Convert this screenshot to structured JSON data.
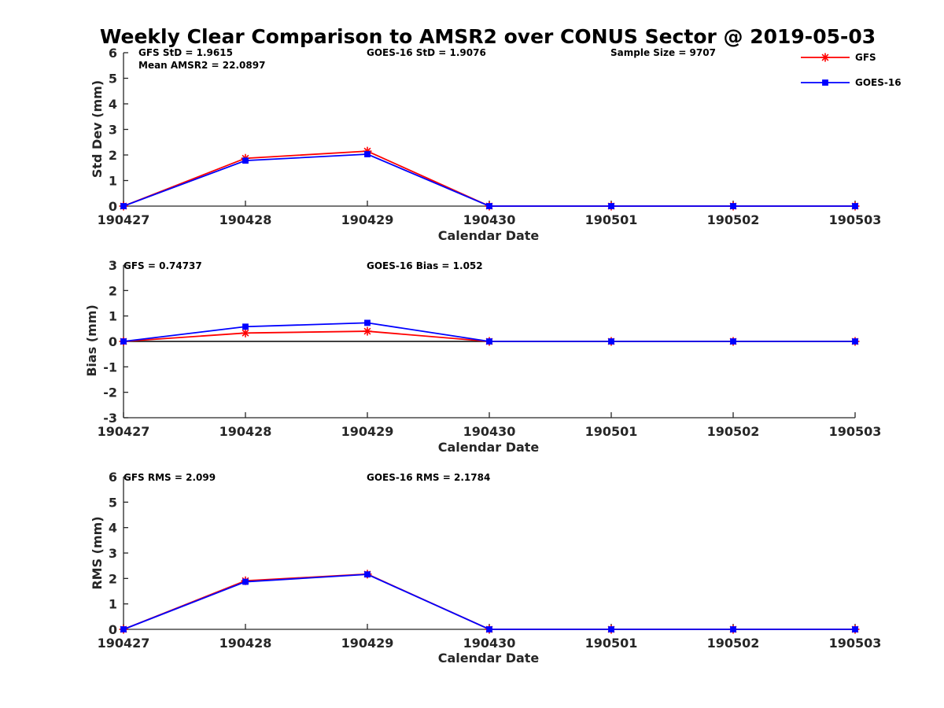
{
  "chart_data": {
    "title": "Weekly Clear Comparison to AMSR2 over CONUS Sector @ 2019-05-03",
    "categories": [
      "190427",
      "190428",
      "190429",
      "190430",
      "190501",
      "190502",
      "190503"
    ],
    "legend": {
      "placement": "top-right",
      "entries": [
        {
          "name": "GFS",
          "color": "#ff0000",
          "marker": "asterisk"
        },
        {
          "name": "GOES-16",
          "color": "#0000ff",
          "marker": "square"
        }
      ]
    },
    "panels": [
      {
        "type": "line",
        "xlabel": "Calendar Date",
        "ylabel": "Std Dev (mm)",
        "ylim": [
          0,
          6
        ],
        "yticks": [
          "0",
          "1",
          "2",
          "3",
          "4",
          "5",
          "6"
        ],
        "grid": false,
        "zero_line": false,
        "annotations": [
          "GFS StD = 1.9615",
          "Mean AMSR2 = 22.0897",
          "GOES-16 StD = 1.9076",
          "Sample Size = 9707"
        ],
        "series": [
          {
            "name": "GFS",
            "color": "#ff0000",
            "marker": "asterisk",
            "values": [
              0,
              1.87,
              2.15,
              0,
              0,
              0,
              0
            ]
          },
          {
            "name": "GOES-16",
            "color": "#0000ff",
            "marker": "square",
            "values": [
              0,
              1.78,
              2.03,
              0,
              0,
              0,
              0
            ]
          }
        ]
      },
      {
        "type": "line",
        "xlabel": "Calendar Date",
        "ylabel": "Bias (mm)",
        "ylim": [
          -3,
          3
        ],
        "yticks": [
          "-3",
          "-2",
          "-1",
          "0",
          "1",
          "2",
          "3"
        ],
        "grid": false,
        "zero_line": true,
        "annotations": [
          "GFS = 0.74737",
          "GOES-16 Bias  = 1.052"
        ],
        "series": [
          {
            "name": "GFS",
            "color": "#ff0000",
            "marker": "asterisk",
            "values": [
              0,
              0.33,
              0.4,
              0,
              0,
              0,
              0
            ]
          },
          {
            "name": "GOES-16",
            "color": "#0000ff",
            "marker": "square",
            "values": [
              0,
              0.58,
              0.73,
              0,
              0,
              0,
              0
            ]
          }
        ]
      },
      {
        "type": "line",
        "xlabel": "Calendar Date",
        "ylabel": "RMS (mm)",
        "ylim": [
          0,
          6
        ],
        "yticks": [
          "0",
          "1",
          "2",
          "3",
          "4",
          "5",
          "6"
        ],
        "grid": false,
        "zero_line": false,
        "annotations": [
          "GFS RMS = 2.099",
          "GOES-16 RMS = 2.1784"
        ],
        "series": [
          {
            "name": "GFS",
            "color": "#ff0000",
            "marker": "asterisk",
            "values": [
              0,
              1.91,
              2.17,
              0,
              0,
              0,
              0
            ]
          },
          {
            "name": "GOES-16",
            "color": "#0000ff",
            "marker": "square",
            "values": [
              0,
              1.87,
              2.16,
              0,
              0,
              0,
              0
            ]
          }
        ]
      }
    ]
  }
}
